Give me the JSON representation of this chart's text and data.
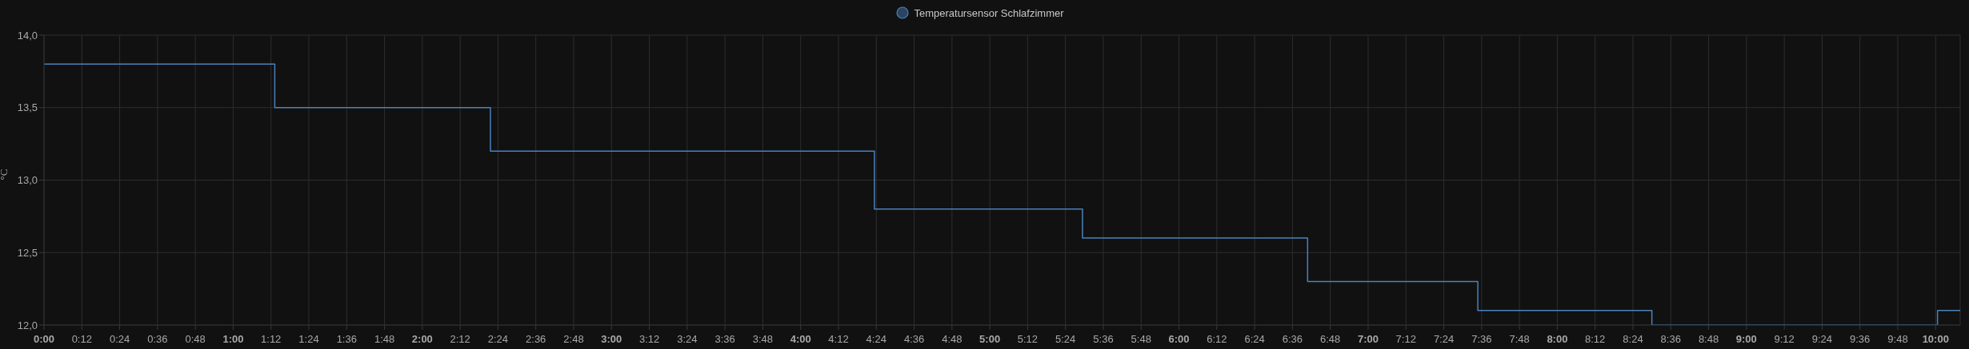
{
  "chart_data": {
    "type": "step",
    "ylabel": "°C",
    "x": [
      0,
      1.22,
      2.36,
      4.39,
      5.49,
      6.68,
      7.58,
      8.5,
      10.01,
      10.13
    ],
    "series": [
      {
        "name": "Temperatursensor Schlafzimmer",
        "color": "#4a82bd",
        "values": [
          13.8,
          13.5,
          13.2,
          12.8,
          12.6,
          12.3,
          12.1,
          12.0,
          12.1,
          12.1
        ]
      }
    ],
    "xlim": [
      0,
      10.13
    ],
    "xticks": [
      {
        "value": 0,
        "label": "0:00"
      },
      {
        "value": 0.2,
        "label": "0:12"
      },
      {
        "value": 0.4,
        "label": "0:24"
      },
      {
        "value": 0.6,
        "label": "0:36"
      },
      {
        "value": 0.8,
        "label": "0:48"
      },
      {
        "value": 1,
        "label": "1:00"
      },
      {
        "value": 1.2,
        "label": "1:12"
      },
      {
        "value": 1.4,
        "label": "1:24"
      },
      {
        "value": 1.6,
        "label": "1:36"
      },
      {
        "value": 1.8,
        "label": "1:48"
      },
      {
        "value": 2,
        "label": "2:00"
      },
      {
        "value": 2.2,
        "label": "2:12"
      },
      {
        "value": 2.4,
        "label": "2:24"
      },
      {
        "value": 2.6,
        "label": "2:36"
      },
      {
        "value": 2.8,
        "label": "2:48"
      },
      {
        "value": 3,
        "label": "3:00"
      },
      {
        "value": 3.2,
        "label": "3:12"
      },
      {
        "value": 3.4,
        "label": "3:24"
      },
      {
        "value": 3.6,
        "label": "3:36"
      },
      {
        "value": 3.8,
        "label": "3:48"
      },
      {
        "value": 4,
        "label": "4:00"
      },
      {
        "value": 4.2,
        "label": "4:12"
      },
      {
        "value": 4.4,
        "label": "4:24"
      },
      {
        "value": 4.6,
        "label": "4:36"
      },
      {
        "value": 4.8,
        "label": "4:48"
      },
      {
        "value": 5,
        "label": "5:00"
      },
      {
        "value": 5.2,
        "label": "5:12"
      },
      {
        "value": 5.4,
        "label": "5:24"
      },
      {
        "value": 5.6,
        "label": "5:36"
      },
      {
        "value": 5.8,
        "label": "5:48"
      },
      {
        "value": 6,
        "label": "6:00"
      },
      {
        "value": 6.2,
        "label": "6:12"
      },
      {
        "value": 6.4,
        "label": "6:24"
      },
      {
        "value": 6.6,
        "label": "6:36"
      },
      {
        "value": 6.8,
        "label": "6:48"
      },
      {
        "value": 7,
        "label": "7:00"
      },
      {
        "value": 7.2,
        "label": "7:12"
      },
      {
        "value": 7.4,
        "label": "7:24"
      },
      {
        "value": 7.6,
        "label": "7:36"
      },
      {
        "value": 7.8,
        "label": "7:48"
      },
      {
        "value": 8,
        "label": "8:00"
      },
      {
        "value": 8.2,
        "label": "8:12"
      },
      {
        "value": 8.4,
        "label": "8:24"
      },
      {
        "value": 8.6,
        "label": "8:36"
      },
      {
        "value": 8.8,
        "label": "8:48"
      },
      {
        "value": 9,
        "label": "9:00"
      },
      {
        "value": 9.2,
        "label": "9:12"
      },
      {
        "value": 9.4,
        "label": "9:24"
      },
      {
        "value": 9.6,
        "label": "9:36"
      },
      {
        "value": 9.8,
        "label": "9:48"
      },
      {
        "value": 10,
        "label": "10:00"
      }
    ],
    "ylim": [
      12,
      14
    ],
    "yticks": [
      {
        "value": 12,
        "label": "12,0"
      },
      {
        "value": 12.5,
        "label": "12,5"
      },
      {
        "value": 13,
        "label": "13,0"
      },
      {
        "value": 13.5,
        "label": "13,5"
      },
      {
        "value": 14,
        "label": "14,0"
      }
    ],
    "grid": true,
    "legend": "top",
    "marker": "none",
    "line_style": "solid"
  }
}
